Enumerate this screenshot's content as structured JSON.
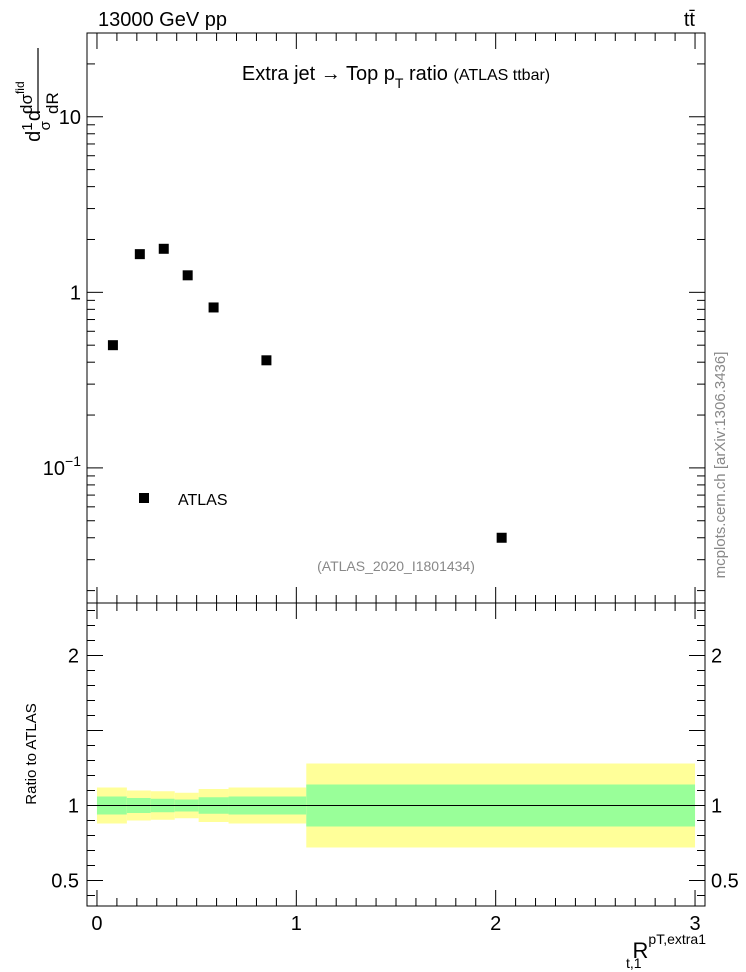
{
  "header": {
    "energy_label": "13000 GeV pp",
    "process_label": "tt̄",
    "side_label": "mcplots.cern.ch [arXiv:1306.3436]"
  },
  "chart_data": [
    {
      "type": "scatter",
      "title_main": "Extra jet → Top p",
      "title_sub": "T",
      "title_tail": " ratio",
      "title_tag": "(ATLAS ttbar)",
      "analysis_label": "(ATLAS_2020_I1801434)",
      "ylabel": "d σ^fid / d R",
      "y_scale": "log",
      "ylim": [
        0.017,
        30
      ],
      "xlim": [
        -0.05,
        3.05
      ],
      "y_ticks": [
        {
          "value": 10,
          "label": "10"
        },
        {
          "value": 1,
          "label": "1"
        },
        {
          "value": 0.1,
          "label": "10",
          "exp": "−1"
        }
      ],
      "legend": {
        "entries": [
          "ATLAS"
        ],
        "placement": "bottom-left"
      },
      "series": [
        {
          "name": "ATLAS",
          "x": [
            0.08,
            0.215,
            0.335,
            0.455,
            0.585,
            0.85,
            2.03
          ],
          "y": [
            0.5,
            1.65,
            1.77,
            1.25,
            0.82,
            0.41,
            0.04
          ]
        }
      ]
    },
    {
      "type": "area",
      "ylabel": "Ratio to ATLAS",
      "xlabel": "R",
      "xlabel_sup": "pT,extra1",
      "xlabel_sub": "t,1",
      "ylim": [
        0.33,
        2.35
      ],
      "xlim": [
        -0.05,
        3.05
      ],
      "x_ticks": [
        {
          "value": 0,
          "label": "0"
        },
        {
          "value": 1,
          "label": "1"
        },
        {
          "value": 2,
          "label": "2"
        },
        {
          "value": 3,
          "label": "3"
        }
      ],
      "y_ticks": [
        {
          "value": 2,
          "label": "2"
        },
        {
          "value": 1,
          "label": "1"
        },
        {
          "value": 0.5,
          "label": "0.5"
        }
      ],
      "reference_line": 1,
      "colors": {
        "inner_band": "#99ff99",
        "outer_band": "#ffff99"
      },
      "bins": [
        {
          "x0": 0.0,
          "x1": 0.15,
          "inner": [
            0.94,
            1.06
          ],
          "outer": [
            0.88,
            1.12
          ]
        },
        {
          "x0": 0.15,
          "x1": 0.27,
          "inner": [
            0.95,
            1.05
          ],
          "outer": [
            0.9,
            1.1
          ]
        },
        {
          "x0": 0.27,
          "x1": 0.39,
          "inner": [
            0.955,
            1.045
          ],
          "outer": [
            0.905,
            1.095
          ]
        },
        {
          "x0": 0.39,
          "x1": 0.51,
          "inner": [
            0.96,
            1.04
          ],
          "outer": [
            0.915,
            1.085
          ]
        },
        {
          "x0": 0.51,
          "x1": 0.66,
          "inner": [
            0.945,
            1.055
          ],
          "outer": [
            0.89,
            1.11
          ]
        },
        {
          "x0": 0.66,
          "x1": 1.05,
          "inner": [
            0.94,
            1.06
          ],
          "outer": [
            0.88,
            1.12
          ]
        },
        {
          "x0": 1.05,
          "x1": 3.0,
          "inner": [
            0.86,
            1.14
          ],
          "outer": [
            0.72,
            1.28
          ]
        }
      ]
    }
  ]
}
